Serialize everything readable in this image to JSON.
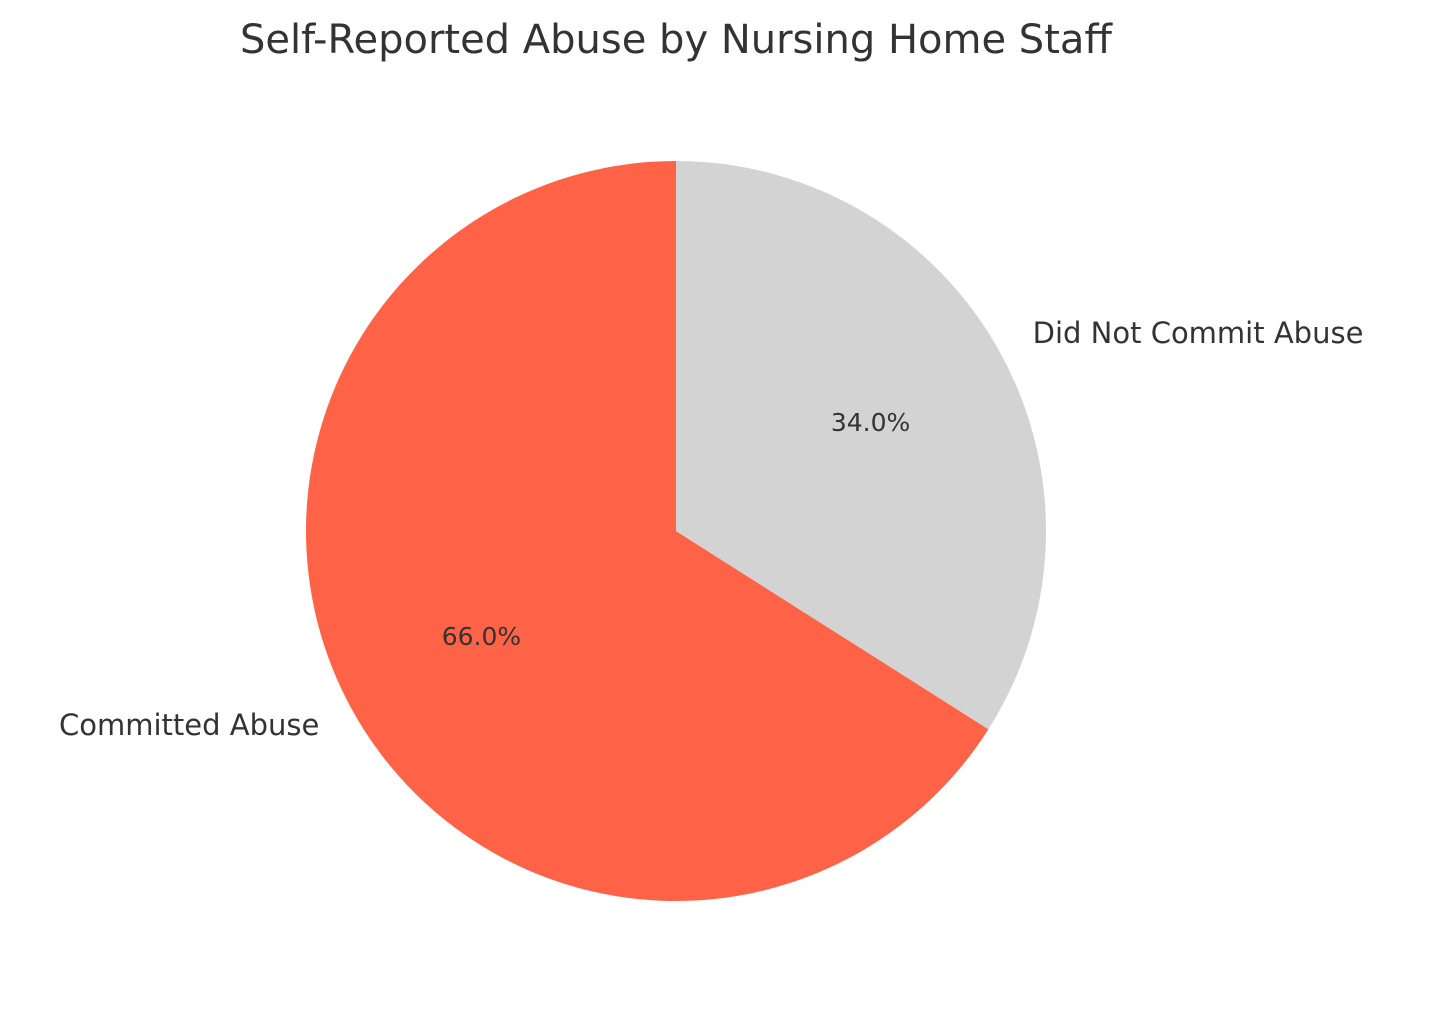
{
  "chart_data": {
    "type": "pie",
    "title": "Self-Reported Abuse by Nursing Home Staff",
    "slices": [
      {
        "label": "Committed Abuse",
        "value": 66.0,
        "pct_label": "66.0%",
        "color": "#ff6347"
      },
      {
        "label": "Did Not Commit Abuse",
        "value": 34.0,
        "pct_label": "34.0%",
        "color": "#d3d3d3"
      }
    ],
    "start_angle": "top",
    "direction": "counterclockwise"
  }
}
